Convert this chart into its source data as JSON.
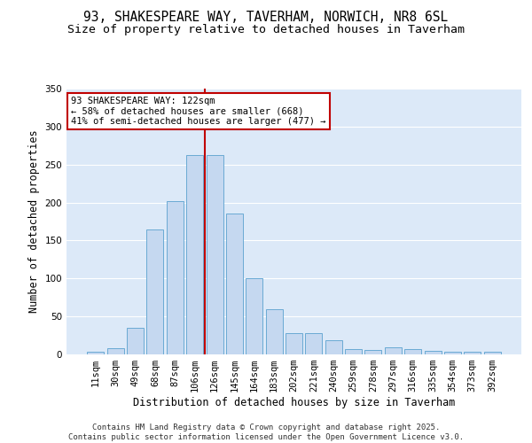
{
  "title_line1": "93, SHAKESPEARE WAY, TAVERHAM, NORWICH, NR8 6SL",
  "title_line2": "Size of property relative to detached houses in Taverham",
  "xlabel": "Distribution of detached houses by size in Taverham",
  "ylabel": "Number of detached properties",
  "categories": [
    "11sqm",
    "30sqm",
    "49sqm",
    "68sqm",
    "87sqm",
    "106sqm",
    "126sqm",
    "145sqm",
    "164sqm",
    "183sqm",
    "202sqm",
    "221sqm",
    "240sqm",
    "259sqm",
    "278sqm",
    "297sqm",
    "316sqm",
    "335sqm",
    "354sqm",
    "373sqm",
    "392sqm"
  ],
  "values": [
    3,
    8,
    35,
    165,
    202,
    263,
    263,
    185,
    100,
    60,
    28,
    28,
    19,
    7,
    6,
    9,
    7,
    5,
    4,
    3,
    4
  ],
  "bar_color": "#c5d8f0",
  "bar_edge_color": "#6aaad4",
  "vline_x": 5.5,
  "vline_color": "#c00000",
  "annotation_text": "93 SHAKESPEARE WAY: 122sqm\n← 58% of detached houses are smaller (668)\n41% of semi-detached houses are larger (477) →",
  "annotation_box_color": "#c00000",
  "annotation_text_color": "#000000",
  "footer_line1": "Contains HM Land Registry data © Crown copyright and database right 2025.",
  "footer_line2": "Contains public sector information licensed under the Open Government Licence v3.0.",
  "background_color": "#dce9f8",
  "fig_background_color": "#ffffff",
  "ylim": [
    0,
    350
  ],
  "yticks": [
    0,
    50,
    100,
    150,
    200,
    250,
    300,
    350
  ],
  "grid_color": "#ffffff",
  "title_fontsize": 10.5,
  "subtitle_fontsize": 9.5,
  "axis_label_fontsize": 8.5,
  "tick_fontsize": 7.5,
  "footer_fontsize": 6.5
}
